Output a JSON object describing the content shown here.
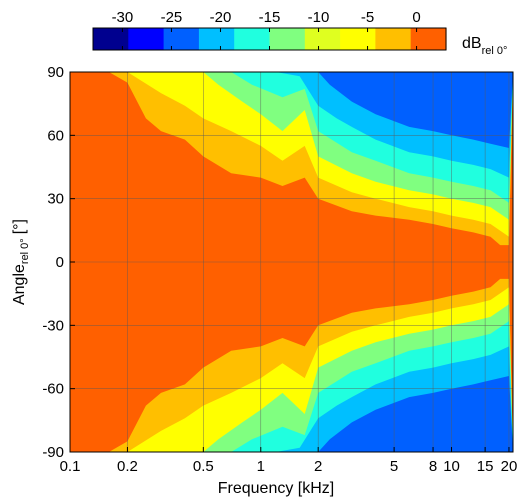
{
  "chart_data": {
    "type": "heatmap",
    "title": "",
    "xlabel": "Frequency [kHz]",
    "ylabel": {
      "main": "Angle",
      "sub": "rel 0°",
      "unit": "[°]"
    },
    "x_scale": "log",
    "xlim": [
      0.1,
      21
    ],
    "ylim": [
      -90,
      90
    ],
    "x_ticks": [
      0.1,
      0.2,
      0.5,
      1,
      2,
      5,
      8,
      10,
      15,
      20
    ],
    "x_tick_labels": [
      "0.1",
      "0.2",
      "0.5",
      "1",
      "2",
      "5",
      "8",
      "10",
      "15",
      "20"
    ],
    "y_ticks": [
      -90,
      -60,
      -30,
      0,
      30,
      60,
      90
    ],
    "y_tick_labels": [
      "-90",
      "-60",
      "-30",
      "0",
      "30",
      "60",
      "90"
    ],
    "grid": true,
    "colorbar": {
      "placement": "top",
      "ticks": [
        -30,
        -25,
        -20,
        -15,
        -10,
        -5,
        0
      ],
      "tick_labels": [
        "-30",
        "-25",
        "-20",
        "-15",
        "-10",
        "-5",
        "0"
      ],
      "label": {
        "main": "dB",
        "sub": "rel 0°"
      },
      "range": [
        -33,
        3
      ],
      "colors": [
        "#00008f",
        "#0000ff",
        "#0060ff",
        "#00bfff",
        "#20ffdf",
        "#80ff80",
        "#dfff20",
        "#ffff00",
        "#ffbf00",
        "#ff6000"
      ]
    },
    "contours": [
      {
        "level": -3,
        "color": "#ffbf00",
        "boundary_deg": [
          [
            0.1,
            90
          ],
          [
            0.16,
            90
          ],
          [
            0.2,
            85
          ],
          [
            0.25,
            68
          ],
          [
            0.3,
            62
          ],
          [
            0.4,
            58
          ],
          [
            0.5,
            50
          ],
          [
            0.7,
            42
          ],
          [
            1,
            40
          ],
          [
            1.3,
            36
          ],
          [
            1.7,
            40
          ],
          [
            2,
            30
          ],
          [
            3,
            24
          ],
          [
            4,
            22
          ],
          [
            6,
            20
          ],
          [
            8,
            18
          ],
          [
            10,
            16
          ],
          [
            13,
            14
          ],
          [
            16,
            12
          ],
          [
            18,
            8
          ],
          [
            20,
            8
          ]
        ]
      },
      {
        "level": -5,
        "color": "#ffff00",
        "boundary_deg": [
          [
            0.1,
            90
          ],
          [
            0.2,
            90
          ],
          [
            0.3,
            80
          ],
          [
            0.4,
            74
          ],
          [
            0.5,
            68
          ],
          [
            0.7,
            62
          ],
          [
            1,
            55
          ],
          [
            1.3,
            48
          ],
          [
            1.7,
            55
          ],
          [
            2,
            40
          ],
          [
            3,
            33
          ],
          [
            4,
            30
          ],
          [
            6,
            26
          ],
          [
            8,
            24
          ],
          [
            10,
            22
          ],
          [
            13,
            20
          ],
          [
            16,
            18
          ],
          [
            20,
            12
          ]
        ]
      },
      {
        "level": -10,
        "color": "#80ff80",
        "boundary_deg": [
          [
            0.1,
            90
          ],
          [
            0.5,
            90
          ],
          [
            0.6,
            84
          ],
          [
            0.8,
            76
          ],
          [
            1,
            70
          ],
          [
            1.3,
            62
          ],
          [
            1.7,
            72
          ],
          [
            2,
            50
          ],
          [
            3,
            42
          ],
          [
            4,
            38
          ],
          [
            6,
            34
          ],
          [
            8,
            32
          ],
          [
            10,
            30
          ],
          [
            13,
            28
          ],
          [
            16,
            26
          ],
          [
            20,
            20
          ]
        ]
      },
      {
        "level": -15,
        "color": "#20ffdf",
        "boundary_deg": [
          [
            0.1,
            90
          ],
          [
            0.7,
            90
          ],
          [
            0.9,
            84
          ],
          [
            1.3,
            78
          ],
          [
            1.7,
            82
          ],
          [
            2,
            62
          ],
          [
            3,
            52
          ],
          [
            4,
            48
          ],
          [
            6,
            42
          ],
          [
            8,
            40
          ],
          [
            10,
            38
          ],
          [
            13,
            36
          ],
          [
            16,
            34
          ],
          [
            20,
            28
          ]
        ]
      },
      {
        "level": -20,
        "color": "#00bfff",
        "boundary_deg": [
          [
            0.1,
            90
          ],
          [
            1.2,
            90
          ],
          [
            1.6,
            88
          ],
          [
            2,
            74
          ],
          [
            2.5,
            68
          ],
          [
            3,
            64
          ],
          [
            4,
            58
          ],
          [
            6,
            52
          ],
          [
            8,
            50
          ],
          [
            10,
            48
          ],
          [
            13,
            46
          ],
          [
            16,
            44
          ],
          [
            20,
            40
          ]
        ]
      },
      {
        "level": -25,
        "color": "#0060ff",
        "boundary_deg": [
          [
            0.1,
            90
          ],
          [
            2,
            90
          ],
          [
            2.3,
            84
          ],
          [
            3,
            76
          ],
          [
            4,
            70
          ],
          [
            6,
            64
          ],
          [
            8,
            62
          ],
          [
            10,
            60
          ],
          [
            13,
            58
          ],
          [
            16,
            56
          ],
          [
            20,
            54
          ]
        ]
      }
    ]
  }
}
